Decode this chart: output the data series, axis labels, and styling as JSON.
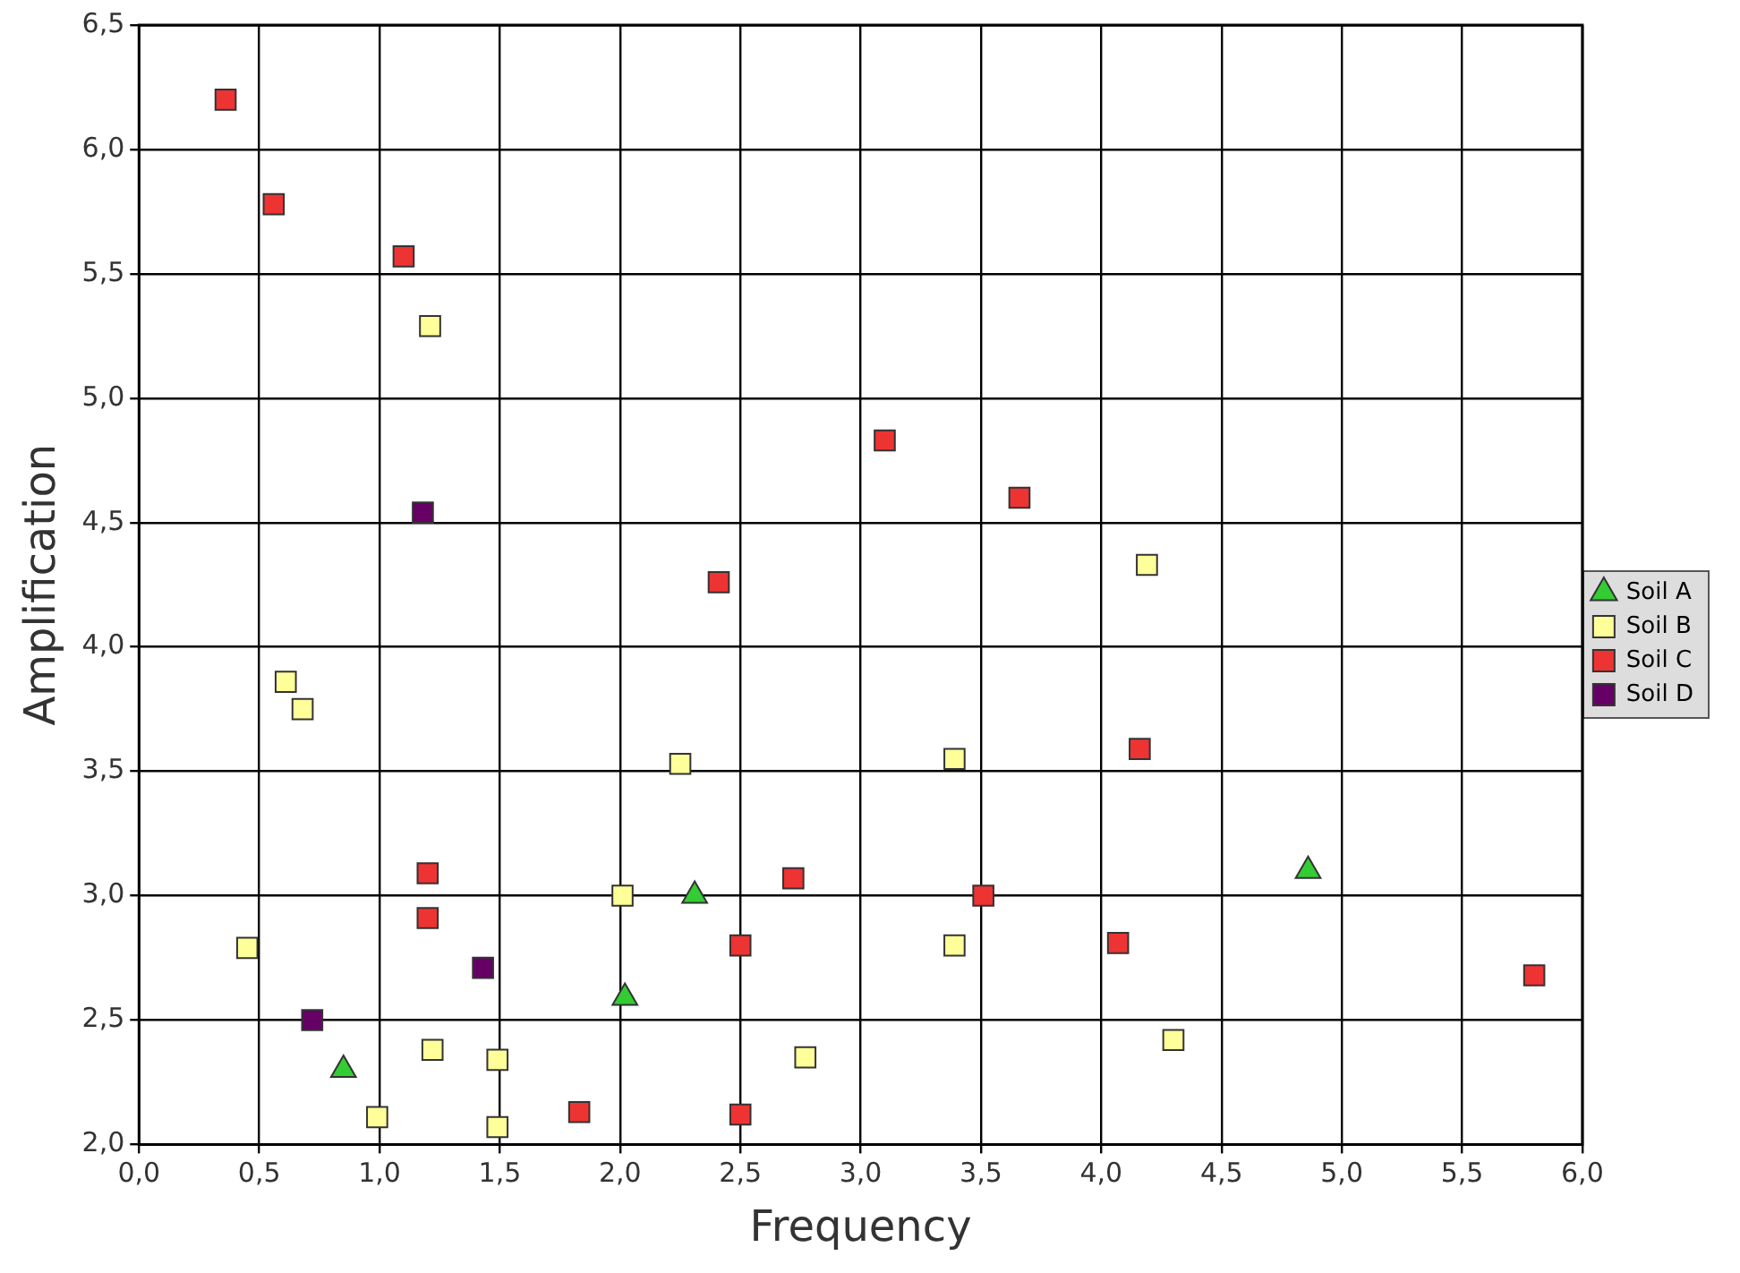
{
  "chart_data": {
    "type": "scatter",
    "xlabel": "Frequency",
    "ylabel": "Amplification",
    "xlim": [
      0,
      6
    ],
    "ylim": [
      2,
      6.5
    ],
    "xticks": [
      {
        "value": 0,
        "label": "0,0"
      },
      {
        "value": 0.5,
        "label": "0,5"
      },
      {
        "value": 1,
        "label": "1,0"
      },
      {
        "value": 1.5,
        "label": "1,5"
      },
      {
        "value": 2,
        "label": "2,0"
      },
      {
        "value": 2.5,
        "label": "2,5"
      },
      {
        "value": 3,
        "label": "3,0"
      },
      {
        "value": 3.5,
        "label": "3,5"
      },
      {
        "value": 4,
        "label": "4,0"
      },
      {
        "value": 4.5,
        "label": "4,5"
      },
      {
        "value": 5,
        "label": "5,0"
      },
      {
        "value": 5.5,
        "label": "5,5"
      },
      {
        "value": 6,
        "label": "6,0"
      }
    ],
    "yticks": [
      {
        "value": 2,
        "label": "2,0"
      },
      {
        "value": 2.5,
        "label": "2,5"
      },
      {
        "value": 3,
        "label": "3,0"
      },
      {
        "value": 3.5,
        "label": "3,5"
      },
      {
        "value": 4,
        "label": "4,0"
      },
      {
        "value": 4.5,
        "label": "4,5"
      },
      {
        "value": 5,
        "label": "5,0"
      },
      {
        "value": 5.5,
        "label": "5,5"
      },
      {
        "value": 6,
        "label": "6,0"
      },
      {
        "value": 6.5,
        "label": "6,5"
      }
    ],
    "grid": true,
    "legend": "right",
    "series": [
      {
        "name": "Soil A",
        "color": "#33cc33",
        "marker": "triangle",
        "x": [
          0.85,
          2.02,
          2.31,
          4.86
        ],
        "values": [
          2.3,
          2.59,
          3.0,
          3.1
        ]
      },
      {
        "name": "Soil B",
        "color": "#ffff99",
        "marker": "square",
        "x": [
          1.21,
          0.61,
          0.68,
          0.45,
          0.99,
          1.22,
          1.49,
          1.49,
          2.01,
          2.25,
          2.77,
          3.39,
          3.39,
          4.19,
          4.3
        ],
        "values": [
          5.29,
          3.86,
          3.75,
          2.79,
          2.11,
          2.38,
          2.34,
          2.07,
          3.0,
          3.53,
          2.35,
          3.55,
          2.8,
          4.33,
          2.42
        ]
      },
      {
        "name": "Soil C",
        "color": "#ee3333",
        "marker": "square",
        "x": [
          0.36,
          0.56,
          1.1,
          3.1,
          3.66,
          2.41,
          4.16,
          1.2,
          1.2,
          2.72,
          3.51,
          2.5,
          4.07,
          5.8,
          1.83,
          2.5
        ],
        "values": [
          6.2,
          5.78,
          5.57,
          4.83,
          4.6,
          4.26,
          3.59,
          3.09,
          2.91,
          3.07,
          3.0,
          2.8,
          2.81,
          2.68,
          2.13,
          2.12
        ]
      },
      {
        "name": "Soil D",
        "color": "#660066",
        "marker": "square",
        "x": [
          1.18,
          1.43,
          0.72
        ],
        "values": [
          4.54,
          2.71,
          2.5
        ]
      }
    ]
  }
}
